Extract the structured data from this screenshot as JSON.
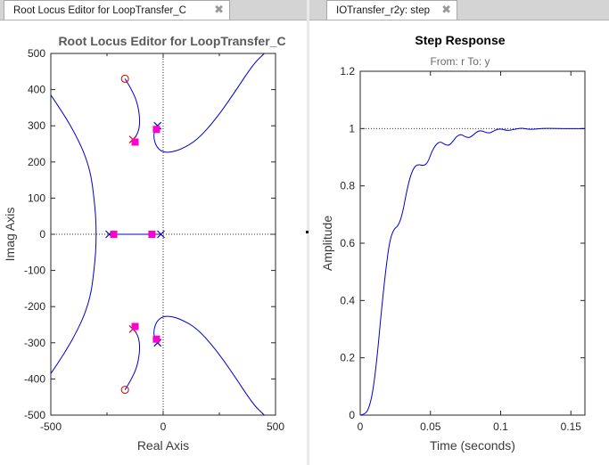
{
  "tabs": {
    "left": {
      "label": "Root Locus Editor for LoopTransfer_C",
      "close": "✖"
    },
    "right": {
      "label": "IOTransfer_r2y: step",
      "close": "✖"
    }
  },
  "chart_data": [
    {
      "type": "line",
      "chart_kind": "root-locus",
      "title": "Root Locus Editor for LoopTransfer_C",
      "xlabel": "Real Axis",
      "ylabel": "Imag Axis",
      "xlim": [
        -500,
        500
      ],
      "ylim": [
        -500,
        500
      ],
      "xticks": [
        -500,
        0,
        500
      ],
      "xtick_labels": [
        "-500",
        "0",
        "500"
      ],
      "yticks": [
        500,
        400,
        300,
        200,
        100,
        0,
        -100,
        -200,
        -300,
        -400,
        -500
      ],
      "ytick_labels": [
        "500",
        "400",
        "300",
        "200",
        "100",
        "0",
        "-100",
        "-200",
        "-300",
        "-400",
        "-500"
      ],
      "grid": false,
      "locus_color": "#0000cc",
      "pole_color": "#0000cc",
      "zero_color": "#cc0000",
      "closed_loop_pole_color": "#ff00cc",
      "branches": [
        {
          "name": "",
          "points": [
            [
              -500,
              385
            ],
            [
              -440,
              330
            ],
            [
              -385,
              270
            ],
            [
              -345,
              215
            ],
            [
              -320,
              160
            ],
            [
              -308,
              100
            ],
            [
              -300,
              50
            ],
            [
              -298,
              0
            ],
            [
              -300,
              -50
            ],
            [
              -308,
              -100
            ],
            [
              -320,
              -160
            ],
            [
              -345,
              -215
            ],
            [
              -385,
              -270
            ],
            [
              -440,
              -330
            ],
            [
              -500,
              -385
            ]
          ]
        },
        {
          "name": "",
          "points": [
            [
              -25,
              300
            ],
            [
              -40,
              285
            ],
            [
              -42,
              265
            ],
            [
              -30,
              242
            ],
            [
              -5,
              228
            ],
            [
              30,
              226
            ],
            [
              80,
              235
            ],
            [
              150,
              260
            ],
            [
              230,
              315
            ],
            [
              310,
              385
            ],
            [
              400,
              470
            ],
            [
              450,
              500
            ]
          ]
        },
        {
          "name": "",
          "points": [
            [
              -25,
              -300
            ],
            [
              -40,
              -285
            ],
            [
              -42,
              -265
            ],
            [
              -30,
              -242
            ],
            [
              -5,
              -228
            ],
            [
              30,
              -226
            ],
            [
              80,
              -235
            ],
            [
              150,
              -260
            ],
            [
              230,
              -315
            ],
            [
              310,
              -385
            ],
            [
              400,
              -470
            ],
            [
              450,
              -500
            ]
          ]
        },
        {
          "name": "",
          "points": [
            [
              -135,
              262
            ],
            [
              -120,
              270
            ],
            [
              -105,
              295
            ],
            [
              -105,
              330
            ],
            [
              -118,
              370
            ],
            [
              -145,
              405
            ],
            [
              -170,
              430
            ]
          ]
        },
        {
          "name": "",
          "points": [
            [
              -135,
              -262
            ],
            [
              -120,
              -270
            ],
            [
              -105,
              -295
            ],
            [
              -105,
              -330
            ],
            [
              -118,
              -370
            ],
            [
              -145,
              -405
            ],
            [
              -170,
              -430
            ]
          ]
        },
        {
          "name": "",
          "points": [
            [
              -240,
              0
            ],
            [
              -10,
              0
            ]
          ]
        }
      ],
      "open_loop_poles": [
        [
          -240,
          0
        ],
        [
          -10,
          0
        ],
        [
          -25,
          300
        ],
        [
          -25,
          -300
        ],
        [
          -135,
          262
        ],
        [
          -135,
          -262
        ]
      ],
      "open_loop_zeros": [
        [
          -170,
          430
        ],
        [
          -170,
          -430
        ]
      ],
      "closed_loop_poles": [
        [
          -220,
          0
        ],
        [
          -50,
          0
        ],
        [
          -30,
          290
        ],
        [
          -30,
          -290
        ],
        [
          -125,
          255
        ],
        [
          -125,
          -255
        ]
      ]
    },
    {
      "type": "line",
      "title": "Step Response",
      "subtitle": "From: r  To: y",
      "xlabel": "Time (seconds)",
      "ylabel": "Amplitude",
      "xlim": [
        0,
        0.16
      ],
      "ylim": [
        0,
        1.2
      ],
      "xticks": [
        0,
        0.05,
        0.1,
        0.15
      ],
      "xtick_labels": [
        "0",
        "0.05",
        "0.1",
        "0.15"
      ],
      "yticks": [
        0,
        0.2,
        0.4,
        0.6,
        0.8,
        1,
        1.2
      ],
      "ytick_labels": [
        "0",
        "0.2",
        "0.4",
        "0.6",
        "0.8",
        "1",
        "1.2"
      ],
      "grid": false,
      "reference_line": 1,
      "series": [
        {
          "name": "",
          "color": "#0000cc",
          "x": [
            0,
            0.003,
            0.006,
            0.009,
            0.012,
            0.015,
            0.018,
            0.021,
            0.024,
            0.027,
            0.03,
            0.033,
            0.036,
            0.039,
            0.042,
            0.045,
            0.048,
            0.051,
            0.054,
            0.057,
            0.06,
            0.063,
            0.066,
            0.069,
            0.072,
            0.075,
            0.078,
            0.081,
            0.084,
            0.087,
            0.09,
            0.093,
            0.096,
            0.1,
            0.105,
            0.11,
            0.115,
            0.12,
            0.125,
            0.13,
            0.14,
            0.15,
            0.16
          ],
          "y": [
            0,
            0.002,
            0.02,
            0.08,
            0.2,
            0.36,
            0.5,
            0.61,
            0.65,
            0.66,
            0.7,
            0.78,
            0.84,
            0.87,
            0.875,
            0.87,
            0.88,
            0.92,
            0.945,
            0.955,
            0.945,
            0.94,
            0.955,
            0.975,
            0.98,
            0.97,
            0.968,
            0.98,
            0.992,
            0.992,
            0.985,
            0.985,
            0.995,
            1.0,
            0.992,
            0.998,
            1.002,
            0.997,
            0.998,
            1.001,
            1.0,
            1.0,
            1.0
          ]
        }
      ]
    }
  ]
}
